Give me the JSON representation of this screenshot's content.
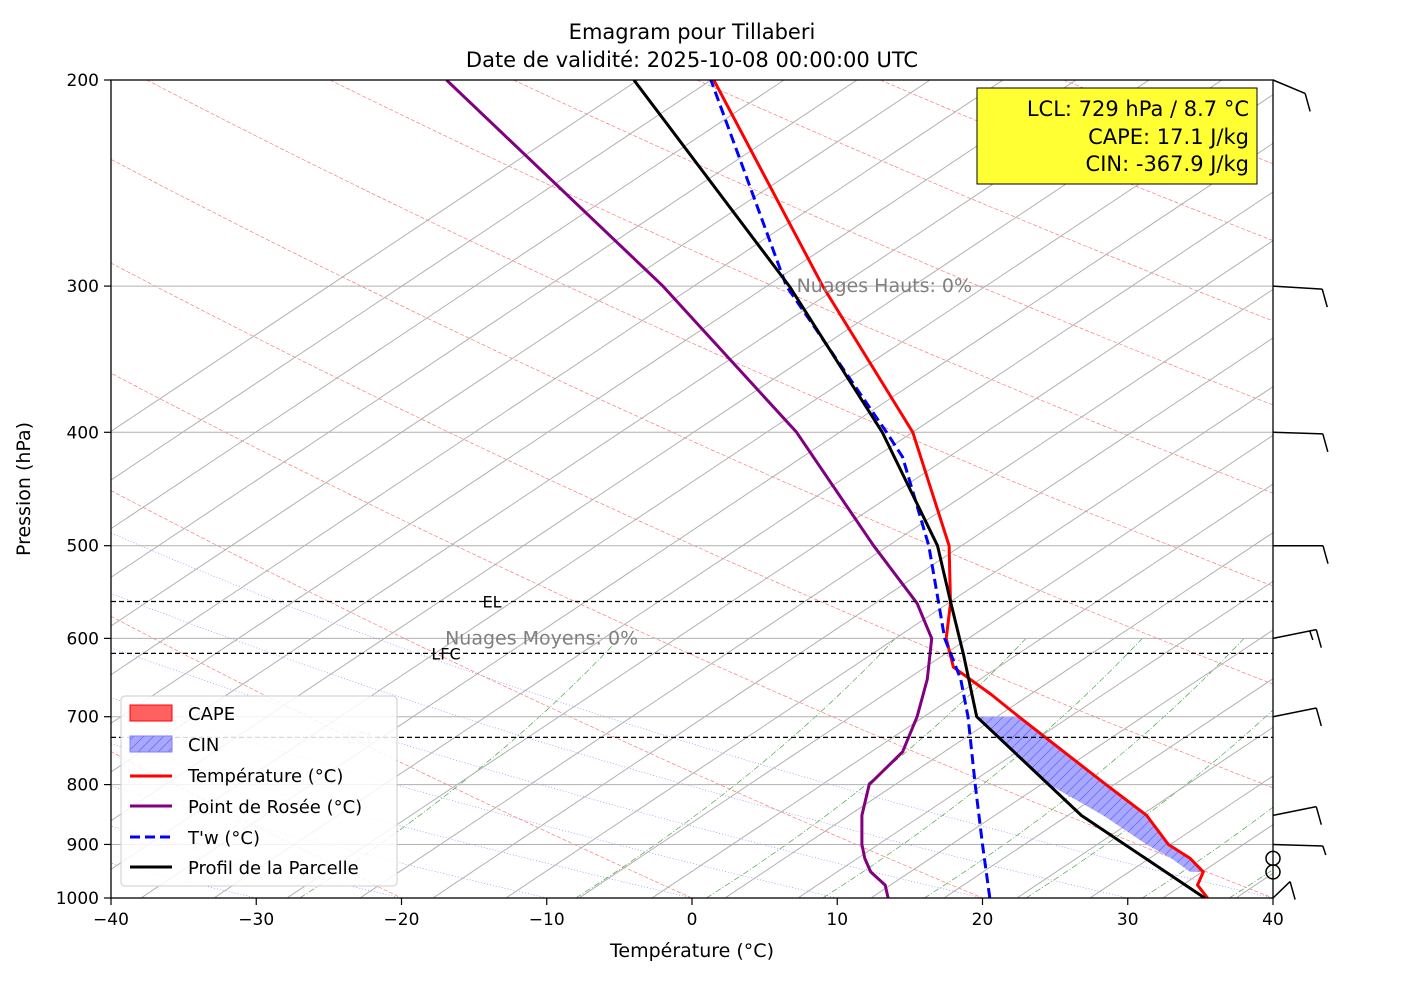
{
  "chart_data": {
    "type": "line",
    "title_line1": "Emagram pour Tillaberi",
    "title_line2": "Date de validité: 2025-10-08 00:00:00 UTC",
    "xlabel": "Température (°C)",
    "ylabel": "Pression (hPa)",
    "xlim": [
      -40,
      40
    ],
    "ylim": [
      1000,
      200
    ],
    "y_scale": "log",
    "x_ticks": [
      -40,
      -30,
      -20,
      -10,
      0,
      10,
      20,
      30,
      40
    ],
    "x_tick_labels": [
      "−40",
      "−30",
      "−20",
      "−10",
      "0",
      "10",
      "20",
      "30",
      "40"
    ],
    "y_ticks": [
      1000,
      900,
      800,
      700,
      600,
      500,
      400,
      300,
      200
    ],
    "y_tick_labels": [
      "1000",
      "900",
      "800",
      "700",
      "600",
      "500",
      "400",
      "300",
      "200"
    ],
    "grid": true,
    "info_box": {
      "line1": "LCL: 729 hPa / 8.7 °C",
      "line2": "CAPE: 17.1 J/kg",
      "line3": "CIN: -367.9 J/kg",
      "color": "#ffff33"
    },
    "levels": [
      {
        "name": "EL",
        "pressure": 558,
        "label": "EL"
      },
      {
        "name": "LFC",
        "pressure": 618,
        "label": "LFC"
      },
      {
        "name": "LCL",
        "pressure": 729,
        "label": "LCL"
      }
    ],
    "cloud_labels": [
      {
        "text": "Nuages Hauts: 0%",
        "pressure": 300,
        "t": 7.2
      },
      {
        "text": "Nuages Moyens: 0%",
        "pressure": 600,
        "t": -17
      }
    ],
    "series": [
      {
        "name": "Température (°C)",
        "color": "#ff0000",
        "dash": "",
        "t": [
          35.5,
          34.8,
          35.2,
          34.3,
          32.8,
          31.3,
          28.5,
          22.5,
          20.6,
          18.0,
          17.5,
          17.8,
          17.7,
          15.2,
          9.0,
          1.5
        ],
        "p": [
          1000,
          975,
          950,
          925,
          900,
          850,
          800,
          700,
          670,
          635,
          600,
          560,
          500,
          400,
          300,
          200
        ]
      },
      {
        "name": "Point de Rosée (°C)",
        "color": "#800080",
        "dash": "",
        "t": [
          13.5,
          13.3,
          12.3,
          11.9,
          11.7,
          11.7,
          12.2,
          14.5,
          15.5,
          16.2,
          16.5,
          15.5,
          12.5,
          7.2,
          -2.0,
          -16.9
        ],
        "p": [
          1000,
          975,
          950,
          925,
          900,
          850,
          800,
          750,
          700,
          650,
          600,
          560,
          500,
          400,
          300,
          200
        ]
      },
      {
        "name": "T'w (°C)",
        "color": "#0000ff",
        "dash": "10 5",
        "t": [
          20.5,
          20.0,
          19.5,
          19.0,
          18.5,
          17.4,
          16.3,
          14.5,
          13.4,
          6.5,
          1.3
        ],
        "p": [
          1000,
          900,
          800,
          700,
          650,
          600,
          500,
          420,
          400,
          300,
          200
        ]
      },
      {
        "name": "Profil de la Parcelle",
        "color": "#000000",
        "dash": "",
        "t": [
          35.3,
          26.8,
          19.6,
          18.7,
          17.8,
          16.9,
          13.1,
          6.7,
          -4.0
        ],
        "p": [
          1000,
          850,
          700,
          620,
          558,
          500,
          400,
          300,
          200
        ]
      }
    ],
    "cin_shading": {
      "legend": "CIN",
      "color": "#8080ff",
      "upper": {
        "p": [
          950,
          925,
          900,
          850,
          800,
          700
        ],
        "t": [
          34.3,
          33.0,
          31.3,
          28.3,
          24.6,
          19.6
        ]
      },
      "lower": {
        "p": [
          950,
          925,
          900,
          850,
          800,
          700
        ],
        "t": [
          35.2,
          34.3,
          32.8,
          31.3,
          28.5,
          22.5
        ]
      }
    },
    "cape_legend": {
      "legend": "CAPE",
      "color": "#ff6060"
    },
    "wind_barbs": [
      {
        "p": 200,
        "dir": 320,
        "speed": 10
      },
      {
        "p": 300,
        "dir": 280,
        "speed": 10
      },
      {
        "p": 400,
        "dir": 275,
        "speed": 10
      },
      {
        "p": 500,
        "dir": 270,
        "speed": 10
      },
      {
        "p": 600,
        "dir": 240,
        "speed": 15
      },
      {
        "p": 700,
        "dir": 240,
        "speed": 10
      },
      {
        "p": 850,
        "dir": 240,
        "speed": 10
      },
      {
        "p": 900,
        "dir": 275,
        "speed": 5
      },
      {
        "p": 925,
        "dir": 0,
        "speed": 0
      },
      {
        "p": 950,
        "dir": 0,
        "speed": 0
      },
      {
        "p": 1000,
        "dir": 200,
        "speed": 10
      }
    ],
    "legend_position": "lower-left"
  }
}
